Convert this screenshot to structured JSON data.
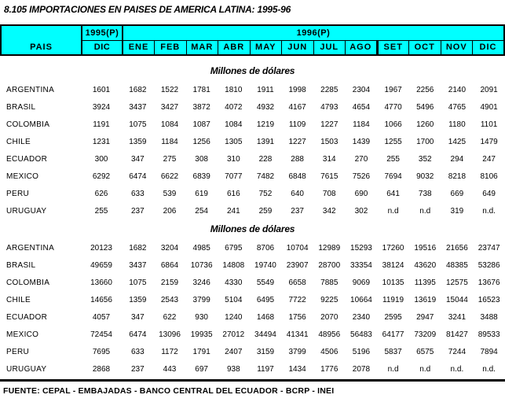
{
  "title": "8.105  IMPORTACIONES EN PAISES DE AMERICA LATINA: 1995-96",
  "colors": {
    "header_bg": "#00FFFF",
    "border": "#000000",
    "text": "#000000",
    "page_bg": "#FFFFFF"
  },
  "table": {
    "pais_header": "PAIS",
    "year1995": "1995(P)",
    "year1996": "1996(P)",
    "dic1995": "DIC",
    "months": [
      "ENE",
      "FEB",
      "MAR",
      "ABR",
      "MAY",
      "JUN",
      "JUL",
      "AGO",
      "SET",
      "OCT",
      "NOV",
      "DIC"
    ],
    "sections": [
      {
        "heading": "Millones de dólares",
        "rows": [
          {
            "pais": "ARGENTINA",
            "values": [
              "1601",
              "1682",
              "1522",
              "1781",
              "1810",
              "1911",
              "1998",
              "2285",
              "2304",
              "1967",
              "2256",
              "2140",
              "2091"
            ]
          },
          {
            "pais": "BRASIL",
            "values": [
              "3924",
              "3437",
              "3427",
              "3872",
              "4072",
              "4932",
              "4167",
              "4793",
              "4654",
              "4770",
              "5496",
              "4765",
              "4901"
            ]
          },
          {
            "pais": "COLOMBIA",
            "values": [
              "1191",
              "1075",
              "1084",
              "1087",
              "1084",
              "1219",
              "1109",
              "1227",
              "1184",
              "1066",
              "1260",
              "1180",
              "1101"
            ]
          },
          {
            "pais": "CHILE",
            "values": [
              "1231",
              "1359",
              "1184",
              "1256",
              "1305",
              "1391",
              "1227",
              "1503",
              "1439",
              "1255",
              "1700",
              "1425",
              "1479"
            ]
          },
          {
            "pais": "ECUADOR",
            "values": [
              "300",
              "347",
              "275",
              "308",
              "310",
              "228",
              "288",
              "314",
              "270",
              "255",
              "352",
              "294",
              "247"
            ]
          },
          {
            "pais": "MEXICO",
            "values": [
              "6292",
              "6474",
              "6622",
              "6839",
              "7077",
              "7482",
              "6848",
              "7615",
              "7526",
              "7694",
              "9032",
              "8218",
              "8106"
            ]
          },
          {
            "pais": "PERU",
            "values": [
              "626",
              "633",
              "539",
              "619",
              "616",
              "752",
              "640",
              "708",
              "690",
              "641",
              "738",
              "669",
              "649"
            ]
          },
          {
            "pais": "URUGUAY",
            "values": [
              "255",
              "237",
              "206",
              "254",
              "241",
              "259",
              "237",
              "342",
              "302",
              "n.d",
              "n.d",
              "319",
              "n.d."
            ]
          }
        ]
      },
      {
        "heading": "Millones de dólares",
        "rows": [
          {
            "pais": "ARGENTINA",
            "values": [
              "20123",
              "1682",
              "3204",
              "4985",
              "6795",
              "8706",
              "10704",
              "12989",
              "15293",
              "17260",
              "19516",
              "21656",
              "23747"
            ]
          },
          {
            "pais": "BRASIL",
            "values": [
              "49659",
              "3437",
              "6864",
              "10736",
              "14808",
              "19740",
              "23907",
              "28700",
              "33354",
              "38124",
              "43620",
              "48385",
              "53286"
            ]
          },
          {
            "pais": "COLOMBIA",
            "values": [
              "13660",
              "1075",
              "2159",
              "3246",
              "4330",
              "5549",
              "6658",
              "7885",
              "9069",
              "10135",
              "11395",
              "12575",
              "13676"
            ]
          },
          {
            "pais": "CHILE",
            "values": [
              "14656",
              "1359",
              "2543",
              "3799",
              "5104",
              "6495",
              "7722",
              "9225",
              "10664",
              "11919",
              "13619",
              "15044",
              "16523"
            ]
          },
          {
            "pais": "ECUADOR",
            "values": [
              "4057",
              "347",
              "622",
              "930",
              "1240",
              "1468",
              "1756",
              "2070",
              "2340",
              "2595",
              "2947",
              "3241",
              "3488"
            ]
          },
          {
            "pais": "MEXICO",
            "values": [
              "72454",
              "6474",
              "13096",
              "19935",
              "27012",
              "34494",
              "41341",
              "48956",
              "56483",
              "64177",
              "73209",
              "81427",
              "89533"
            ]
          },
          {
            "pais": "PERU",
            "values": [
              "7695",
              "633",
              "1172",
              "1791",
              "2407",
              "3159",
              "3799",
              "4506",
              "5196",
              "5837",
              "6575",
              "7244",
              "7894"
            ]
          },
          {
            "pais": "URUGUAY",
            "values": [
              "2868",
              "237",
              "443",
              "697",
              "938",
              "1197",
              "1434",
              "1776",
              "2078",
              "n.d",
              "n.d",
              "n.d.",
              "n.d."
            ]
          }
        ]
      }
    ]
  },
  "footer": "FUENTE: CEPAL - EMBAJADAS - BANCO CENTRAL DEL ECUADOR - BCRP - INEI"
}
